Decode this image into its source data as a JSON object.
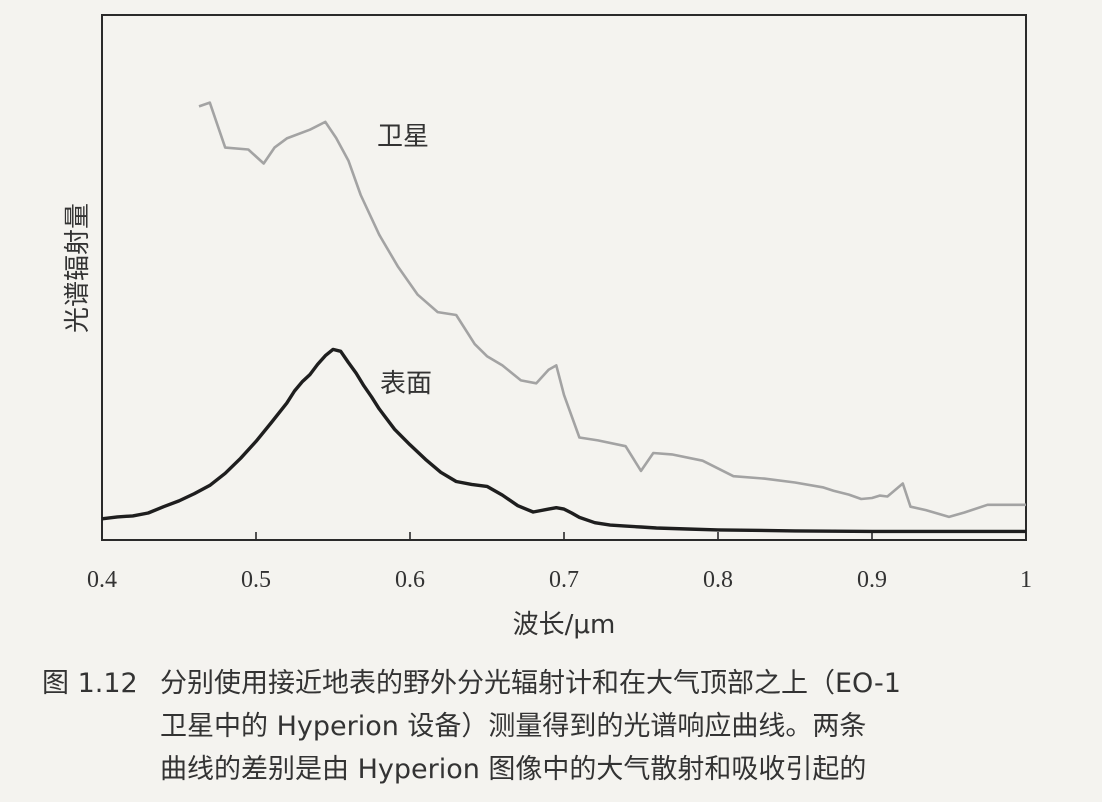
{
  "chart_data": {
    "type": "line",
    "title": "",
    "xlabel": "波长/μm",
    "ylabel": "光谱辐射量",
    "xlim": [
      0.4,
      1.0
    ],
    "xticks": [
      "0.4",
      "0.5",
      "0.6",
      "0.7",
      "0.8",
      "0.9",
      "1"
    ],
    "ylim": [
      0,
      100
    ],
    "y_ticks_shown": false,
    "grid": false,
    "legend": "none (series labelled in-plot)",
    "series": [
      {
        "name": "卫星",
        "color": "#a3a3a3",
        "x": [
          0.463,
          0.47,
          0.48,
          0.495,
          0.505,
          0.512,
          0.52,
          0.535,
          0.545,
          0.552,
          0.56,
          0.568,
          0.58,
          0.592,
          0.605,
          0.618,
          0.63,
          0.642,
          0.65,
          0.66,
          0.672,
          0.682,
          0.69,
          0.695,
          0.7,
          0.71,
          0.722,
          0.74,
          0.75,
          0.758,
          0.77,
          0.79,
          0.81,
          0.83,
          0.85,
          0.868,
          0.875,
          0.885,
          0.893,
          0.9,
          0.905,
          0.91,
          0.92,
          0.925,
          0.935,
          0.95,
          0.96,
          0.975,
          1.0
        ],
        "y": [
          87.1,
          87.9,
          78.6,
          78.2,
          75.3,
          78.6,
          80.5,
          82.3,
          83.9,
          80.6,
          75.9,
          68.8,
          60.6,
          54.1,
          48.2,
          44.6,
          44.0,
          38.0,
          35.5,
          33.6,
          30.5,
          29.9,
          32.7,
          33.6,
          27.5,
          18.7,
          18.1,
          16.9,
          11.8,
          15.5,
          15.2,
          13.9,
          10.7,
          10.2,
          9.4,
          8.4,
          7.7,
          6.9,
          6.0,
          6.2,
          6.7,
          6.5,
          9.2,
          4.4,
          3.7,
          2.3,
          3.2,
          4.8,
          4.8
        ]
      },
      {
        "name": "表面",
        "color": "#1e1e1e",
        "x": [
          0.4,
          0.41,
          0.42,
          0.43,
          0.44,
          0.45,
          0.46,
          0.47,
          0.48,
          0.49,
          0.5,
          0.51,
          0.52,
          0.525,
          0.53,
          0.535,
          0.54,
          0.545,
          0.55,
          0.555,
          0.56,
          0.565,
          0.57,
          0.575,
          0.58,
          0.59,
          0.6,
          0.61,
          0.62,
          0.63,
          0.64,
          0.65,
          0.66,
          0.67,
          0.68,
          0.69,
          0.695,
          0.7,
          0.705,
          0.71,
          0.72,
          0.73,
          0.74,
          0.75,
          0.76,
          0.78,
          0.8,
          0.85,
          0.9,
          0.95,
          1.0
        ],
        "y": [
          1.9,
          2.3,
          2.5,
          3.1,
          4.4,
          5.6,
          7.1,
          8.8,
          11.3,
          14.4,
          17.9,
          21.8,
          25.8,
          28.3,
          30.2,
          31.7,
          33.8,
          35.6,
          36.9,
          36.5,
          34.2,
          32.0,
          29.4,
          27.1,
          24.6,
          20.4,
          17.2,
          14.2,
          11.5,
          9.6,
          9.0,
          8.6,
          6.8,
          4.6,
          3.3,
          3.9,
          4.2,
          3.9,
          3.1,
          2.2,
          1.1,
          0.6,
          0.4,
          0.2,
          0.0,
          -0.2,
          -0.4,
          -0.6,
          -0.7,
          -0.7,
          -0.7
        ]
      }
    ],
    "annotations": [
      {
        "text": "卫星",
        "series": 0
      },
      {
        "text": "表面",
        "series": 1
      }
    ]
  },
  "caption": {
    "number": "图 1.12",
    "lines": [
      "分别使用接近地表的野外分光辐射计和在大气顶部之上（EO-1",
      "卫星中的 Hyperion 设备）测量得到的光谱响应曲线。两条",
      "曲线的差别是由 Hyperion 图像中的大气散射和吸收引起的"
    ]
  }
}
